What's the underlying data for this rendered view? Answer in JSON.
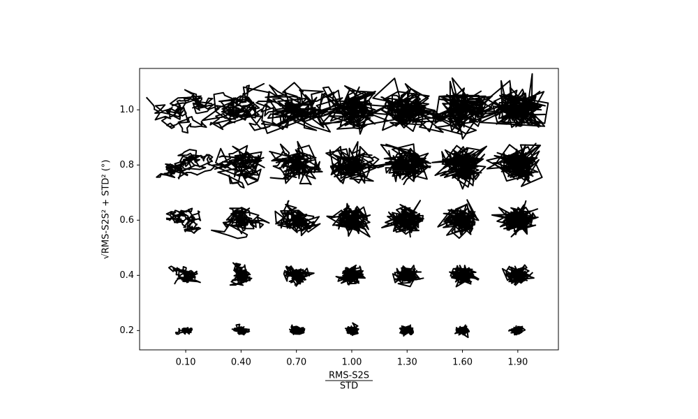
{
  "chart_data": {
    "type": "trajectory-grid",
    "xlabel_numerator": "RMS-S2S",
    "xlabel_denominator": "STD",
    "ylabel": "√RMS-S2S² + STD² (°)",
    "x": [
      0.1,
      0.4,
      0.7,
      1.0,
      1.3,
      1.6,
      1.9,
      0.1,
      0.4,
      0.7,
      1.0,
      1.3,
      1.6,
      1.9,
      0.1,
      0.4,
      0.7,
      1.0,
      1.3,
      1.6,
      1.9,
      0.1,
      0.4,
      0.7,
      1.0,
      1.3,
      1.6,
      1.9,
      0.1,
      0.4,
      0.7,
      1.0,
      1.3,
      1.6,
      1.9
    ],
    "y": [
      0.2,
      0.2,
      0.2,
      0.2,
      0.2,
      0.2,
      0.2,
      0.4,
      0.4,
      0.4,
      0.4,
      0.4,
      0.4,
      0.4,
      0.6,
      0.6,
      0.6,
      0.6,
      0.6,
      0.6,
      0.6,
      0.8,
      0.8,
      0.8,
      0.8,
      0.8,
      0.8,
      0.8,
      1,
      1,
      1,
      1,
      1,
      1,
      1
    ],
    "color": "#000000",
    "xlim": [
      -0.15,
      2.12
    ],
    "ylim": [
      0.13,
      1.15
    ],
    "xticks": [
      {
        "value": 0.1,
        "label": "0.10"
      },
      {
        "value": 0.4,
        "label": "0.40"
      },
      {
        "value": 0.7,
        "label": "0.70"
      },
      {
        "value": 1.0,
        "label": "1.00"
      },
      {
        "value": 1.3,
        "label": "1.30"
      },
      {
        "value": 1.6,
        "label": "1.60"
      },
      {
        "value": 1.9,
        "label": "1.90"
      }
    ],
    "yticks": [
      0.2,
      0.4,
      0.6,
      0.8,
      {
        "value": 1,
        "label": "1.0"
      }
    ]
  }
}
